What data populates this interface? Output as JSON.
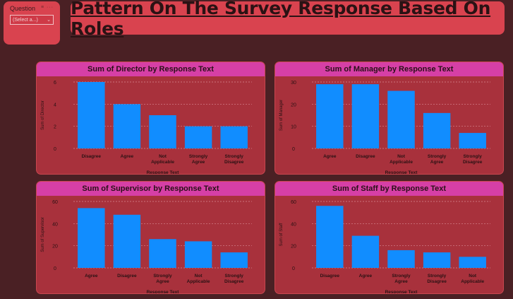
{
  "slicer": {
    "label": "Question",
    "select_value": "(Select a...)",
    "colors": {
      "panel": "#d9434f"
    }
  },
  "header": {
    "title": "Pattern On The Survey Response Based On Roles"
  },
  "chart_data": [
    {
      "type": "bar",
      "title": "Sum of Director by Response Text",
      "xlabel": "Response Text",
      "ylabel": "Sum of Director",
      "categories": [
        "Disagree",
        "Agree",
        "Not Applicable",
        "Strongly Agree",
        "Strongly Disagree"
      ],
      "values": [
        6,
        4,
        3,
        2,
        2
      ],
      "yticks": [
        0,
        2,
        4,
        6
      ],
      "ylim": [
        0,
        6
      ],
      "grid": true,
      "color": "#118dff"
    },
    {
      "type": "bar",
      "title": "Sum of Manager by Response Text",
      "xlabel": "Response Text",
      "ylabel": "Sum of Manager",
      "categories": [
        "Agree",
        "Disagree",
        "Not Applicable",
        "Strongly Agree",
        "Strongly Disagree"
      ],
      "values": [
        29,
        29,
        26,
        16,
        7
      ],
      "yticks": [
        0,
        10,
        20,
        30
      ],
      "ylim": [
        0,
        30
      ],
      "grid": true,
      "color": "#118dff"
    },
    {
      "type": "bar",
      "title": "Sum of Supervisor by Response Text",
      "xlabel": "Response Text",
      "ylabel": "Sum of Supervisor",
      "categories": [
        "Agree",
        "Disagree",
        "Strongly Agree",
        "Not Applicable",
        "Strongly Disagree"
      ],
      "values": [
        54,
        48,
        26,
        24,
        14
      ],
      "yticks": [
        0,
        20,
        40,
        60
      ],
      "ylim": [
        0,
        60
      ],
      "grid": true,
      "color": "#118dff"
    },
    {
      "type": "bar",
      "title": "Sum of Staff by Response Text",
      "xlabel": "Response Text",
      "ylabel": "Sum of Staff",
      "categories": [
        "Disagree",
        "Agree",
        "Strongly Agree",
        "Strongly Disagree",
        "Not Applicable"
      ],
      "values": [
        56,
        29,
        16,
        14,
        10
      ],
      "yticks": [
        0,
        20,
        40,
        60
      ],
      "ylim": [
        0,
        60
      ],
      "grid": true,
      "color": "#118dff"
    }
  ]
}
